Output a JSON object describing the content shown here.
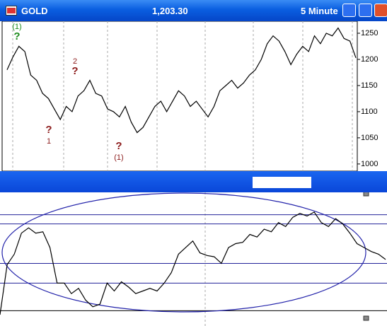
{
  "window": {
    "symbol": "GOLD",
    "price": "1,203.30",
    "interval": "5 Minute"
  },
  "annotations": [
    {
      "label": "(1)",
      "mark": "?",
      "color": "#1a8a1a"
    },
    {
      "label": "2",
      "mark": "?",
      "color": "#8b1a1a"
    },
    {
      "label": "1",
      "mark": "?",
      "color": "#8b1a1a"
    },
    {
      "label": "(1)",
      "mark": "?",
      "color": "#8b1a1a"
    }
  ],
  "chart_data": [
    {
      "type": "line",
      "color": "#000000",
      "values": [
        1180,
        1205,
        1225,
        1215,
        1170,
        1160,
        1135,
        1125,
        1105,
        1085,
        1110,
        1100,
        1130,
        1140,
        1160,
        1135,
        1130,
        1105,
        1100,
        1090,
        1110,
        1080,
        1060,
        1070,
        1090,
        1110,
        1120,
        1100,
        1120,
        1140,
        1130,
        1110,
        1120,
        1105,
        1090,
        1110,
        1140,
        1150,
        1160,
        1145,
        1155,
        1170,
        1180,
        1200,
        1230,
        1245,
        1235,
        1215,
        1190,
        1210,
        1225,
        1215,
        1245,
        1230,
        1250,
        1245,
        1260,
        1240,
        1235,
        1203
      ],
      "ylim": [
        989,
        1273
      ],
      "yticks": [
        1000,
        1050,
        1100,
        1150,
        1200,
        1250
      ]
    },
    {
      "type": "line",
      "color": "#000000",
      "values": [
        7,
        45,
        53,
        69,
        73,
        69,
        70,
        58,
        31,
        31,
        23,
        27,
        18,
        13,
        15,
        31,
        25,
        32,
        28,
        23,
        25,
        27,
        25,
        31,
        39,
        53,
        58,
        63,
        54,
        52,
        51,
        46,
        58,
        61,
        62,
        68,
        66,
        72,
        70,
        77,
        74,
        81,
        84,
        82,
        85,
        77,
        74,
        80,
        76,
        69,
        61,
        58,
        55,
        53,
        49
      ],
      "ylim": [
        0,
        100
      ],
      "levels": [
        83,
        76,
        46,
        31,
        10
      ]
    }
  ]
}
